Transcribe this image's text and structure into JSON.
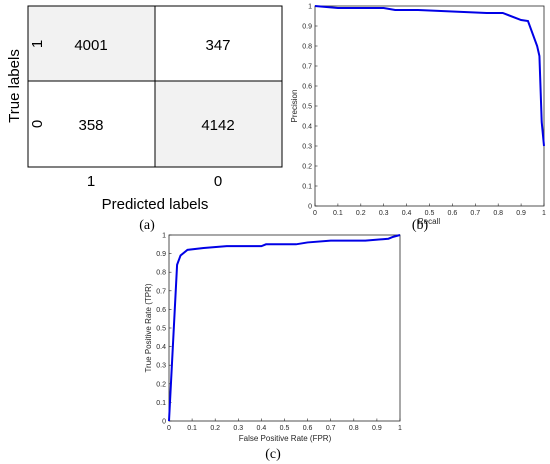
{
  "chart_data": [
    {
      "type": "heatmap",
      "panel_label": "(a)",
      "xlabel": "Predicted labels",
      "ylabel": "True labels",
      "x_categories": [
        "1",
        "0"
      ],
      "y_categories": [
        "1",
        "0"
      ],
      "cells": [
        {
          "value": "4001",
          "row": 0,
          "col": 0,
          "shaded": true
        },
        {
          "value": "347",
          "row": 0,
          "col": 1,
          "shaded": false
        },
        {
          "value": "358",
          "row": 1,
          "col": 0,
          "shaded": false
        },
        {
          "value": "4142",
          "row": 1,
          "col": 1,
          "shaded": true
        }
      ],
      "colors": {
        "shaded": "#f2f2f2",
        "plain": "#ffffff",
        "border": "#000000"
      }
    },
    {
      "type": "line",
      "panel_label": "(b)",
      "xlabel": "Recall",
      "ylabel": "Precision",
      "xlim": [
        0,
        1
      ],
      "ylim": [
        0,
        1
      ],
      "xticks": [
        "0",
        "0.1",
        "0.2",
        "0.3",
        "0.4",
        "0.5",
        "0.6",
        "0.7",
        "0.8",
        "0.9",
        "1"
      ],
      "yticks": [
        "0",
        "0.1",
        "0.2",
        "0.3",
        "0.4",
        "0.5",
        "0.6",
        "0.7",
        "0.8",
        "0.9",
        "1"
      ],
      "grid": false,
      "color": "#0000e6",
      "series": [
        {
          "x": [
            0,
            0.1,
            0.2,
            0.3,
            0.35,
            0.45,
            0.55,
            0.65,
            0.75,
            0.82,
            0.9,
            0.93,
            0.97,
            0.98,
            0.99,
            1.0
          ],
          "y": [
            1.0,
            0.99,
            0.99,
            0.99,
            0.98,
            0.98,
            0.975,
            0.97,
            0.965,
            0.965,
            0.93,
            0.925,
            0.8,
            0.75,
            0.42,
            0.3
          ]
        }
      ]
    },
    {
      "type": "line",
      "panel_label": "(c)",
      "xlabel": "False Positive Rate (FPR)",
      "ylabel": "True Positive Rate (TPR)",
      "xlim": [
        0,
        1
      ],
      "ylim": [
        0,
        1
      ],
      "xticks": [
        "0",
        "0.1",
        "0.2",
        "0.3",
        "0.4",
        "0.5",
        "0.6",
        "0.7",
        "0.8",
        "0.9",
        "1"
      ],
      "yticks": [
        "0",
        "0.1",
        "0.2",
        "0.3",
        "0.4",
        "0.5",
        "0.6",
        "0.7",
        "0.8",
        "0.9",
        "1"
      ],
      "grid": false,
      "color": "#0000e6",
      "series": [
        {
          "x": [
            0,
            0.035,
            0.05,
            0.08,
            0.15,
            0.25,
            0.4,
            0.42,
            0.55,
            0.6,
            0.7,
            0.85,
            0.95,
            0.97,
            1.0
          ],
          "y": [
            0,
            0.84,
            0.89,
            0.92,
            0.93,
            0.94,
            0.94,
            0.95,
            0.95,
            0.96,
            0.97,
            0.97,
            0.98,
            0.99,
            1.0
          ]
        }
      ]
    }
  ]
}
